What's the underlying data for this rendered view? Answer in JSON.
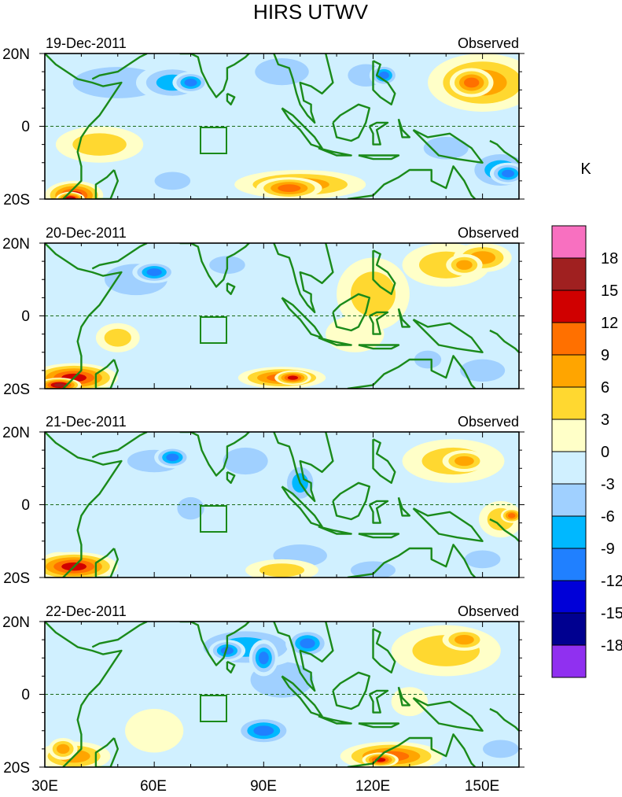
{
  "title": "HIRS UTWV",
  "unit_label": "K",
  "panels": [
    {
      "date": "19-Dec-2011",
      "tag": "Observed"
    },
    {
      "date": "20-Dec-2011",
      "tag": "Observed"
    },
    {
      "date": "21-Dec-2011",
      "tag": "Observed"
    },
    {
      "date": "22-Dec-2011",
      "tag": "Observed"
    }
  ],
  "lat_labels": [
    "20N",
    "0",
    "20S"
  ],
  "lon_labels": [
    "30E",
    "60E",
    "90E",
    "120E",
    "150E"
  ],
  "colorbar": {
    "colors": [
      "#f870c0",
      "#a02020",
      "#d00000",
      "#ff7000",
      "#ffa500",
      "#ffd830",
      "#ffffc8",
      "#d0f0ff",
      "#a0d0ff",
      "#00b8ff",
      "#2080ff",
      "#0000d8",
      "#000090",
      "#9030f0"
    ],
    "labels": [
      "18",
      "15",
      "12",
      "9",
      "6",
      "3",
      "0",
      "-3",
      "-6",
      "-9",
      "-12",
      "-15",
      "-18"
    ]
  },
  "map_colors": {
    "coast": "#1a8a1a",
    "equator": "#1a6a1a"
  }
}
